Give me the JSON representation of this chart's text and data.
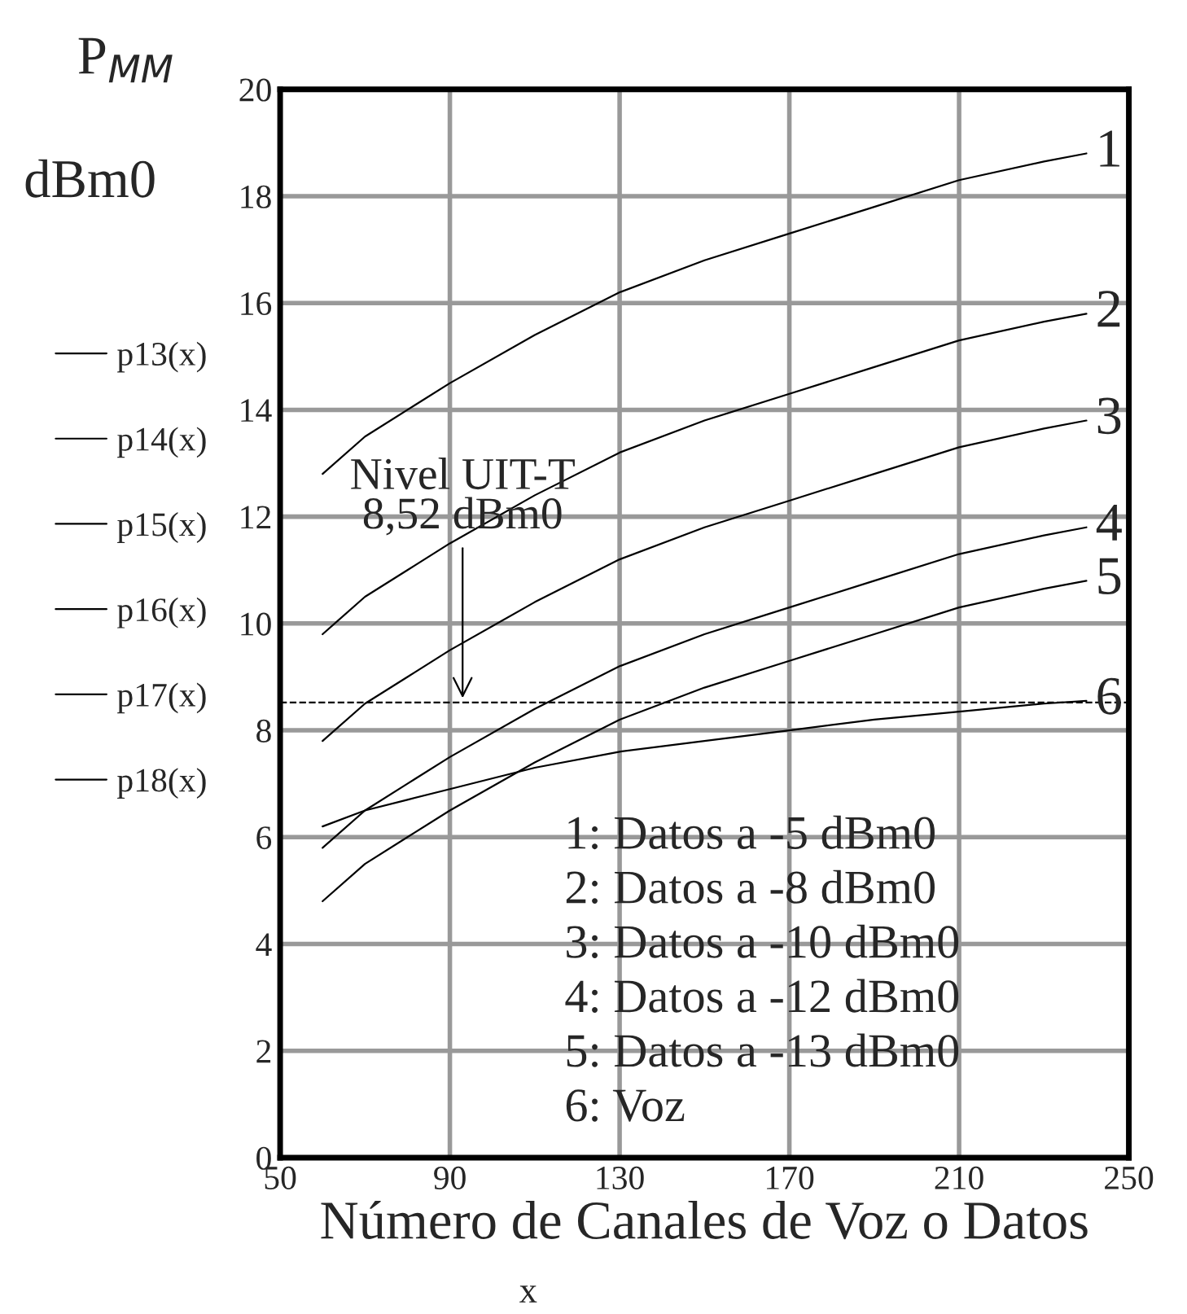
{
  "chart_data": {
    "type": "line",
    "xlabel": "Número de Canales de Voz o Datos",
    "ylabel": "P$_{MM}$ dBm0",
    "x": [
      60,
      70,
      80,
      90,
      110,
      130,
      150,
      170,
      190,
      210,
      230,
      240
    ],
    "series": [
      {
        "name": "p13(x)",
        "color": "#000000",
        "values": [
          12.8,
          13.5,
          14.0,
          14.5,
          15.4,
          16.2,
          16.8,
          17.3,
          17.8,
          18.3,
          18.65,
          18.8
        ]
      },
      {
        "name": "p14(x)",
        "color": "#000000",
        "values": [
          9.8,
          10.5,
          11.0,
          11.5,
          12.4,
          13.2,
          13.8,
          14.3,
          14.8,
          15.3,
          15.65,
          15.8
        ]
      },
      {
        "name": "p15(x)",
        "color": "#000000",
        "values": [
          7.8,
          8.5,
          9.0,
          9.5,
          10.4,
          11.2,
          11.8,
          12.3,
          12.8,
          13.3,
          13.65,
          13.8
        ]
      },
      {
        "name": "p16(x)",
        "color": "#000000",
        "values": [
          5.8,
          6.5,
          7.0,
          7.5,
          8.4,
          9.2,
          9.8,
          10.3,
          10.8,
          11.3,
          11.65,
          11.8
        ]
      },
      {
        "name": "p17(x)",
        "color": "#000000",
        "values": [
          4.8,
          5.5,
          6.0,
          6.5,
          7.4,
          8.2,
          8.8,
          9.3,
          9.8,
          10.3,
          10.65,
          10.8
        ]
      },
      {
        "name": "p18(x)",
        "color": "#000000",
        "values": [
          6.2,
          6.5,
          6.7,
          6.9,
          7.3,
          7.6,
          7.8,
          8.0,
          8.2,
          8.35,
          8.5,
          8.55
        ]
      }
    ],
    "xlim": [
      50,
      250
    ],
    "xticks": [
      50,
      90,
      130,
      170,
      210,
      250
    ],
    "ylim": [
      0,
      20
    ],
    "yticks": [
      0,
      2,
      4,
      6,
      8,
      10,
      12,
      14,
      16,
      18,
      20
    ],
    "grid": true,
    "legend": "left",
    "ref_lines": [
      {
        "axis": "y",
        "value": 8.52,
        "label": "Nivel UIT-T\n8,52 dBm0",
        "color": "#000000",
        "line_style": "dashed"
      }
    ],
    "annotations": [
      "1",
      "2",
      "3",
      "4",
      "5",
      "6",
      "1: Datos a -5 dBm0",
      "2: Datos a -8 dBm0",
      "3: Datos a -10 dBm0",
      "4: Datos a -12 dBm0",
      "5: Datos a -13 dBm0",
      "6: Voz",
      "x"
    ]
  }
}
